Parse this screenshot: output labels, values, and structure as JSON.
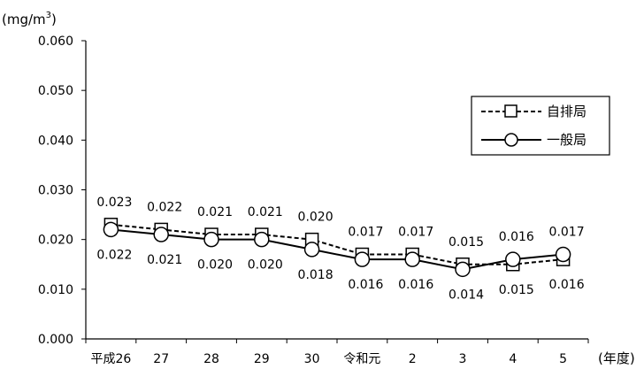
{
  "chart_data": {
    "type": "line",
    "y_unit": "(mg/m3)",
    "y_unit_main": "(mg/m",
    "y_unit_sup": "3",
    "y_unit_close": ")",
    "x_unit": "(年度)",
    "categories": [
      "平成26",
      "27",
      "28",
      "29",
      "30",
      "令和元",
      "2",
      "3",
      "4",
      "5"
    ],
    "ylim": [
      0,
      0.06
    ],
    "yticks": [
      0.0,
      0.01,
      0.02,
      0.03,
      0.04,
      0.05,
      0.06
    ],
    "ytick_labels": [
      "0.000",
      "0.010",
      "0.020",
      "0.030",
      "0.040",
      "0.050",
      "0.060"
    ],
    "grid": false,
    "legend_position": "right",
    "series": [
      {
        "name": "自排局",
        "line_style": "dashed",
        "marker": "square",
        "values": [
          0.023,
          0.022,
          0.021,
          0.021,
          0.02,
          0.017,
          0.017,
          0.015,
          0.015,
          0.016
        ],
        "labels": [
          "0.023",
          "0.022",
          "0.021",
          "0.021",
          "0.020",
          "0.017",
          "0.017",
          "0.015",
          "0.015",
          "0.016"
        ],
        "label_side": [
          "above",
          "above",
          "above",
          "above",
          "above",
          "above",
          "above",
          "above",
          "below",
          "below"
        ]
      },
      {
        "name": "一般局",
        "line_style": "solid",
        "marker": "circle",
        "values": [
          0.022,
          0.021,
          0.02,
          0.02,
          0.018,
          0.016,
          0.016,
          0.014,
          0.016,
          0.017
        ],
        "labels": [
          "0.022",
          "0.021",
          "0.020",
          "0.020",
          "0.018",
          "0.016",
          "0.016",
          "0.014",
          "0.016",
          "0.017"
        ],
        "label_side": [
          "below",
          "below",
          "below",
          "below",
          "below",
          "below",
          "below",
          "below",
          "above",
          "above"
        ]
      }
    ]
  }
}
